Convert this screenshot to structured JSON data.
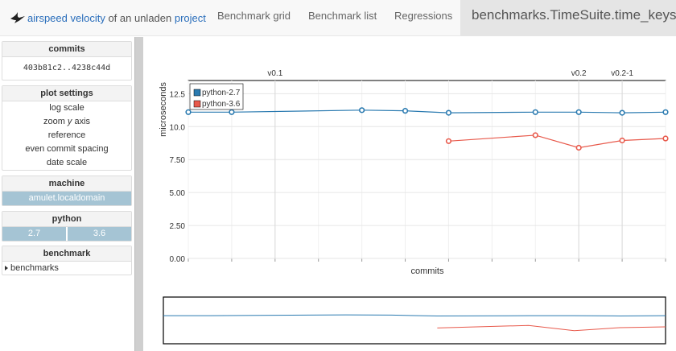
{
  "header": {
    "brand_link": "airspeed velocity",
    "brand_mid": " of an unladen ",
    "brand_project": "project",
    "nav": [
      "Benchmark grid",
      "Benchmark list",
      "Regressions"
    ],
    "active_title": "benchmarks.TimeSuite.time_keys"
  },
  "sidebar": {
    "commits_title": "commits",
    "commit_range": "403b81c2..4238c44d",
    "plot_settings_title": "plot settings",
    "log_scale": "log scale",
    "zoom_prefix": "zoom ",
    "zoom_axis": "y",
    "zoom_suffix": " axis",
    "reference": "reference",
    "even_spacing": "even commit spacing",
    "date_scale": "date scale",
    "machine_title": "machine",
    "machine_value": "amulet.localdomain",
    "python_title": "python",
    "python_values": [
      "2.7",
      "3.6"
    ],
    "benchmark_title": "benchmark",
    "benchmark_item": "benchmarks"
  },
  "colors": {
    "python27": "#2a7ab0",
    "python36": "#e8594b",
    "selected": "#a5c4d4"
  },
  "chart_data": {
    "type": "line",
    "ylabel": "microseconds",
    "xlabel": "commits",
    "ylim": [
      0,
      13.5
    ],
    "yticks": [
      "0.00",
      "2.50",
      "5.00",
      "7.50",
      "10.0",
      "12.5"
    ],
    "ytick_values": [
      0,
      2.5,
      5,
      7.5,
      10,
      12.5
    ],
    "x_range": [
      0,
      11
    ],
    "release_markers": [
      {
        "label": "v0.1",
        "x": 2
      },
      {
        "label": "v0.2",
        "x": 9
      },
      {
        "label": "v0.2-1",
        "x": 10
      }
    ],
    "legend_position": "top-left",
    "series": [
      {
        "name": "python-2.7",
        "x": [
          0,
          1,
          4,
          5,
          6,
          8,
          9,
          10,
          11
        ],
        "values": [
          11.1,
          11.1,
          11.25,
          11.2,
          11.05,
          11.1,
          11.1,
          11.05,
          11.1
        ]
      },
      {
        "name": "python-3.6",
        "x": [
          6,
          8,
          9,
          10,
          11
        ],
        "values": [
          8.9,
          9.35,
          8.4,
          8.95,
          9.1
        ]
      }
    ]
  }
}
